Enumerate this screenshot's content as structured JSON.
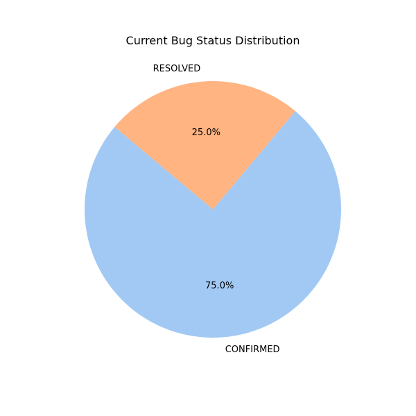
{
  "chart_data": {
    "type": "pie",
    "title": "Current Bug Status Distribution",
    "categories": [
      "CONFIRMED",
      "RESOLVED"
    ],
    "values": [
      75.0,
      25.0
    ],
    "percent_labels": [
      "75.0%",
      "25.0%"
    ],
    "colors": [
      "#a1c9f4",
      "#ffb482"
    ],
    "start_angle_deg": 140,
    "direction": "counterclockwise",
    "legend": "none"
  }
}
